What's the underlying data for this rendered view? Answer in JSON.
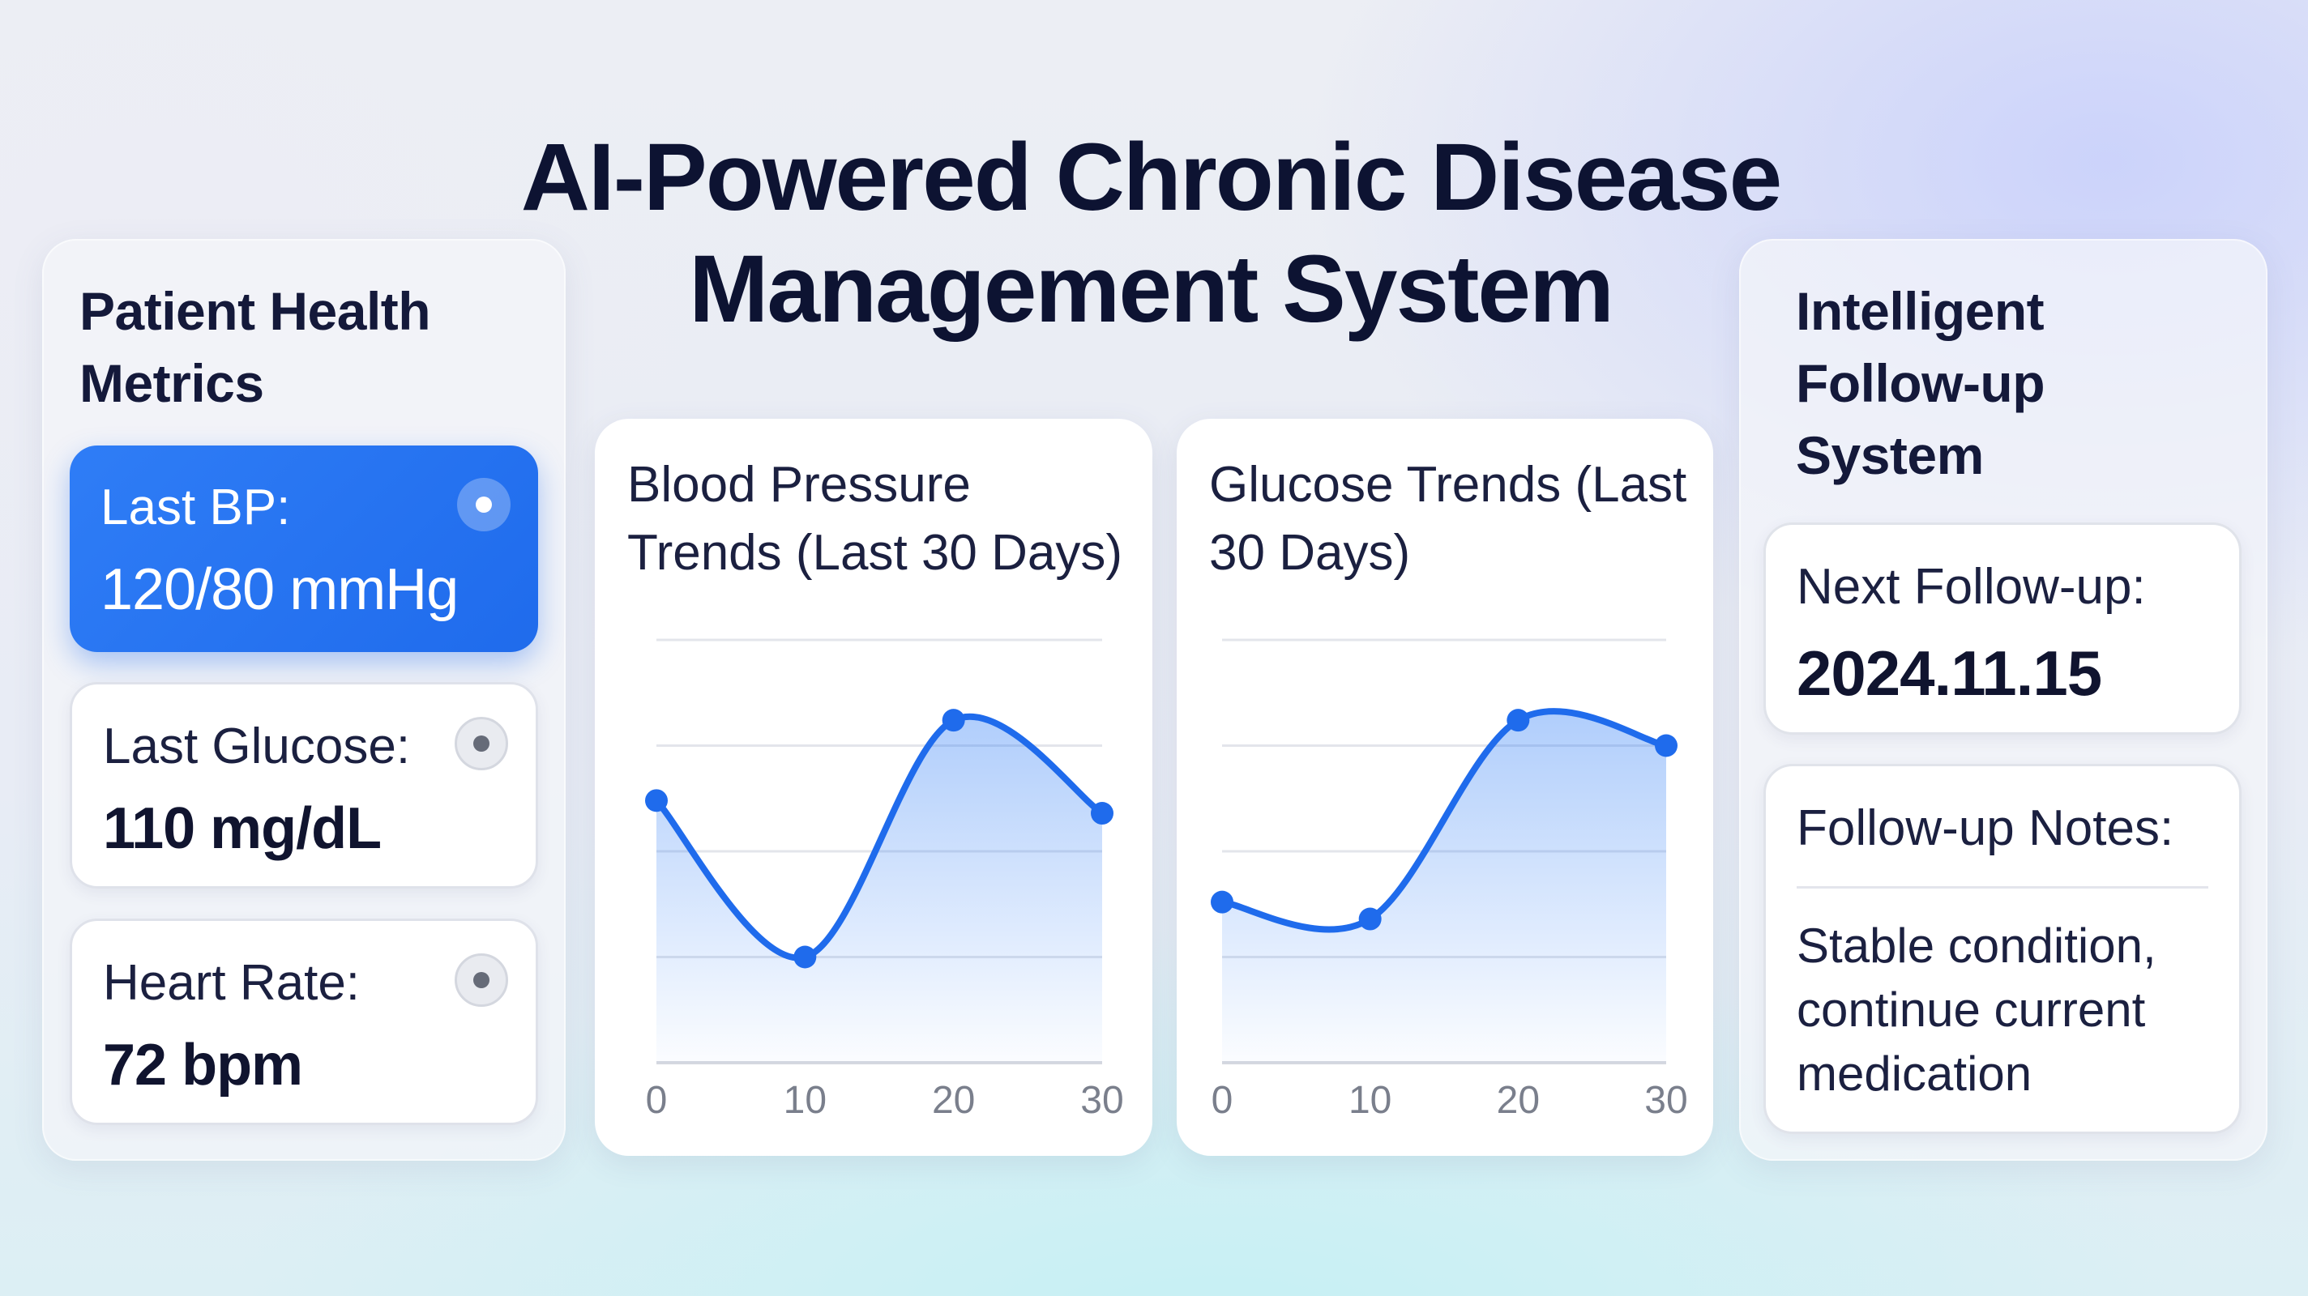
{
  "header": {
    "title": "AI-Powered Chronic Disease Management System"
  },
  "metrics_panel": {
    "heading": "Patient Health Metrics",
    "items": [
      {
        "label": "Last BP:",
        "value": "120/80 mmHg",
        "active": true
      },
      {
        "label": "Last Glucose:",
        "value": "110 mg/dL",
        "active": false
      },
      {
        "label": "Heart Rate:",
        "value": "72 bpm",
        "active": false
      }
    ]
  },
  "charts": {
    "bp": {
      "title": "Blood Pressure Trends (Last 30 Days)"
    },
    "glucose": {
      "title": "Glucose Trends (Last 30 Days)"
    }
  },
  "chart_data": [
    {
      "type": "area",
      "title": "Blood Pressure Trends (Last 30 Days)",
      "x": [
        0,
        10,
        20,
        30
      ],
      "xticks": [
        "0",
        "10",
        "20",
        "30"
      ],
      "series": [
        {
          "values": [
            0.62,
            0.25,
            0.81,
            0.59
          ]
        }
      ],
      "xlim": [
        0,
        30
      ],
      "ylim": [
        0,
        1
      ],
      "grid": true,
      "colors": {
        "line": "#1f6bec",
        "fill": "#2f7df6"
      }
    },
    {
      "type": "area",
      "title": "Glucose Trends (Last 30 Days)",
      "x": [
        0,
        10,
        20,
        30
      ],
      "xticks": [
        "0",
        "10",
        "20",
        "30"
      ],
      "series": [
        {
          "values": [
            0.38,
            0.34,
            0.81,
            0.75
          ]
        }
      ],
      "xlim": [
        0,
        30
      ],
      "ylim": [
        0,
        1
      ],
      "grid": true,
      "colors": {
        "line": "#1f6bec",
        "fill": "#2f7df6"
      }
    }
  ],
  "followup_panel": {
    "heading": "Intelligent Follow-up System",
    "next": {
      "label": "Next Follow-up:",
      "value": "2024.11.15"
    },
    "notes": {
      "label": "Follow-up Notes:",
      "value": "Stable condition, continue current medication"
    }
  },
  "icons": {
    "metric_status": "radio-dot-icon"
  }
}
